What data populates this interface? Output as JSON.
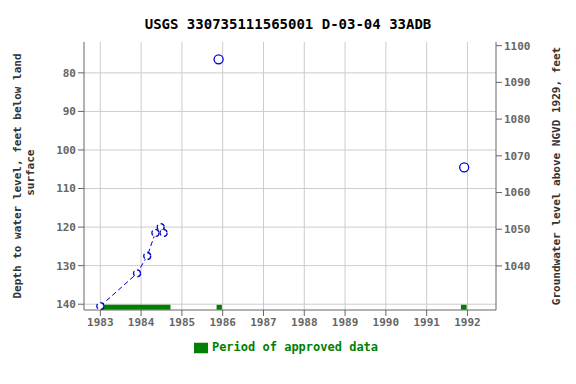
{
  "chart_data": {
    "type": "line",
    "title": "USGS 330735111565001 D-03-04 33ADB",
    "ylabel": "Depth to water level, feet below land\n surface",
    "y2label": "Groundwater level above NGVD 1929, feet",
    "xlim": [
      1982.6,
      1992.7
    ],
    "xticks": [
      1983,
      1984,
      1985,
      1986,
      1987,
      1988,
      1989,
      1990,
      1991,
      1992
    ],
    "ylim": [
      141.5,
      72.0
    ],
    "yticks": [
      80,
      90,
      100,
      110,
      120,
      130,
      140
    ],
    "y2lim": [
      1028.0,
      1101.0
    ],
    "y2ticks": [
      1040,
      1050,
      1060,
      1070,
      1080,
      1090,
      1100
    ],
    "grid": true,
    "legend": "bottom",
    "series": [
      {
        "type": "line",
        "line_style": "dashed",
        "marker": "circle",
        "color": "#0000cc",
        "x": [
          1983.0,
          1983.9,
          1984.15,
          1984.35,
          1984.48,
          1984.55
        ],
        "values": [
          140.5,
          132.0,
          127.5,
          121.5,
          120.0,
          121.5
        ]
      },
      {
        "type": "scatter",
        "marker": "circle",
        "color": "#0000cc",
        "x": [
          1985.9,
          1991.92
        ],
        "values": [
          76.5,
          104.5
        ]
      },
      {
        "type": "segments",
        "name": "Period of approved data",
        "color": "#008000",
        "segments": [
          {
            "x1": 1983.0,
            "x2": 1984.72,
            "y": 140.8
          },
          {
            "x1": 1985.85,
            "x2": 1985.98,
            "y": 140.8
          },
          {
            "x1": 1991.84,
            "x2": 1991.98,
            "y": 140.8
          }
        ]
      }
    ]
  }
}
